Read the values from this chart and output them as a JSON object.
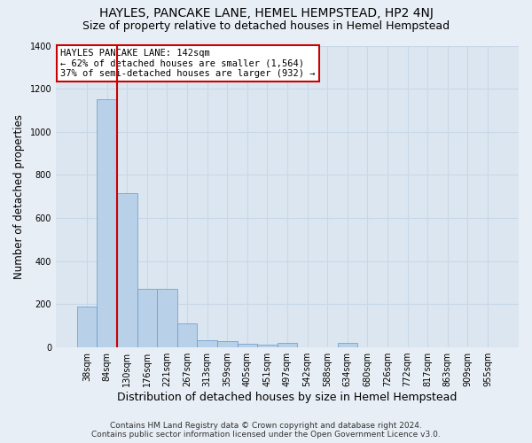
{
  "title": "HAYLES, PANCAKE LANE, HEMEL HEMPSTEAD, HP2 4NJ",
  "subtitle": "Size of property relative to detached houses in Hemel Hempstead",
  "xlabel": "Distribution of detached houses by size in Hemel Hempstead",
  "ylabel": "Number of detached properties",
  "categories": [
    "38sqm",
    "84sqm",
    "130sqm",
    "176sqm",
    "221sqm",
    "267sqm",
    "313sqm",
    "359sqm",
    "405sqm",
    "451sqm",
    "497sqm",
    "542sqm",
    "588sqm",
    "634sqm",
    "680sqm",
    "726sqm",
    "772sqm",
    "817sqm",
    "863sqm",
    "909sqm",
    "955sqm"
  ],
  "values": [
    190,
    1150,
    715,
    270,
    270,
    110,
    35,
    30,
    16,
    14,
    20,
    0,
    0,
    20,
    0,
    0,
    0,
    0,
    0,
    0,
    0
  ],
  "bar_color": "#b8d0e8",
  "bar_edge_color": "#6699cc",
  "red_line_x": 1.5,
  "red_line_color": "#cc0000",
  "annotation_text": "HAYLES PANCAKE LANE: 142sqm\n← 62% of detached houses are smaller (1,564)\n37% of semi-detached houses are larger (932) →",
  "annotation_box_edge": "#cc0000",
  "annotation_box_face": "#ffffff",
  "ylim": [
    0,
    1400
  ],
  "yticks": [
    0,
    200,
    400,
    600,
    800,
    1000,
    1200,
    1400
  ],
  "background_color": "#e8eef5",
  "plot_bg_color": "#dce6f0",
  "footer_line1": "Contains HM Land Registry data © Crown copyright and database right 2024.",
  "footer_line2": "Contains public sector information licensed under the Open Government Licence v3.0.",
  "title_fontsize": 10,
  "subtitle_fontsize": 9,
  "grid_color": "#c8d8e8",
  "ylabel_fontsize": 8.5,
  "xlabel_fontsize": 9,
  "tick_fontsize": 7,
  "ann_fontsize": 7.5
}
